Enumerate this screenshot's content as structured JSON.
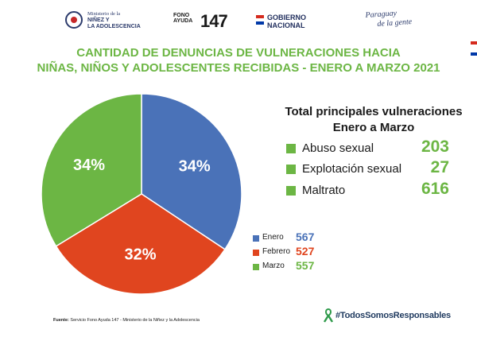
{
  "header": {
    "ministry_line1": "Ministerio de la",
    "ministry_line2": "NIÑEZ Y",
    "ministry_line3": "LA ADOLESCENCIA",
    "fono_text": "FONO AYUDA",
    "fono_number": "147",
    "gobierno_line1": "GOBIERNO",
    "gobierno_line2": "NACIONAL",
    "paraguay_line1": "Paraguay",
    "paraguay_line2": "de la gente"
  },
  "chart_data": {
    "type": "pie",
    "title_line1": "CANTIDAD DE DENUNCIAS DE VULNERACIONES HACIA",
    "title_line2": "NIÑAS, NIÑOS Y ADOLESCENTES RECIBIDAS - ENERO A MARZO 2021",
    "categories": [
      "Enero",
      "Febrero",
      "Marzo"
    ],
    "values": [
      567,
      527,
      557
    ],
    "percent_labels": [
      "34%",
      "32%",
      "34%"
    ],
    "colors": [
      "#4a72b8",
      "#e0451f",
      "#6cb644"
    ],
    "legend_position": "bottom-right"
  },
  "summary": {
    "title_line1": "Total principales vulneraciones",
    "title_line2": "Enero a Marzo",
    "items": [
      {
        "label": "Abuso sexual",
        "value": "203"
      },
      {
        "label": "Explotación sexual",
        "value": "27"
      },
      {
        "label": "Maltrato",
        "value": "616"
      }
    ]
  },
  "legend": [
    {
      "label": "Enero",
      "value": "567",
      "color": "#4a72b8"
    },
    {
      "label": "Febrero",
      "value": "527",
      "color": "#e0451f"
    },
    {
      "label": "Marzo",
      "value": "557",
      "color": "#6cb644"
    }
  ],
  "footer": {
    "source_label": "Fuente:",
    "source_text": "Servicio Fono Ayuda 147 - Ministerio de la Niñez y la Adolescencia",
    "hashtag": "#TodosSomosResponsables"
  },
  "colors": {
    "title_green": "#6cb644",
    "ribbon_green": "#2e9a4a",
    "navy": "#1f2d5c",
    "flag_red": "#d52b1e",
    "flag_blue": "#0038a8"
  }
}
